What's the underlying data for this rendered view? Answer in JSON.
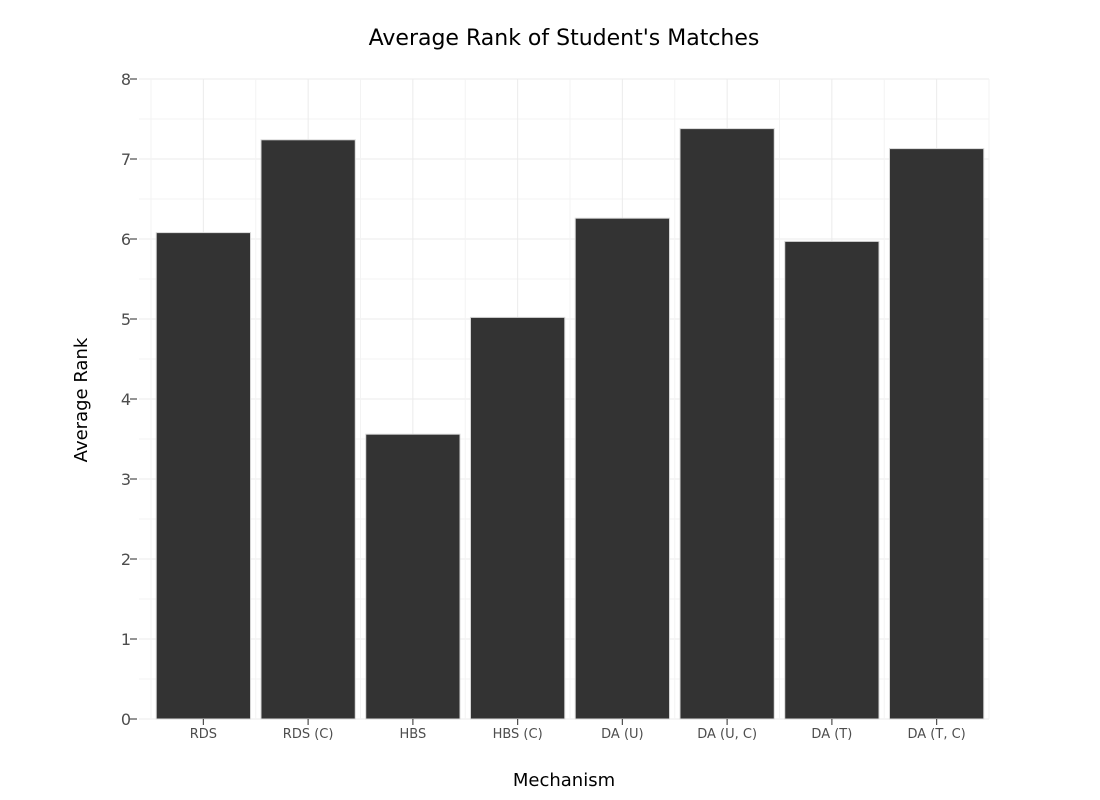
{
  "chart_data": {
    "type": "bar",
    "title": "Average Rank of Student's Matches",
    "xlabel": "Mechanism",
    "ylabel": "Average Rank",
    "categories": [
      "RDS",
      "RDS (C)",
      "HBS",
      "HBS (C)",
      "DA (U)",
      "DA (U, C)",
      "DA (T)",
      "DA (T, C)"
    ],
    "values": [
      6.08,
      7.24,
      3.56,
      5.02,
      6.26,
      7.38,
      5.97,
      7.13
    ],
    "ylim": [
      0,
      8
    ],
    "yticks": [
      "0",
      "1",
      "2",
      "3",
      "4",
      "5",
      "6",
      "7",
      "8"
    ],
    "grid": true,
    "bar_color": "#333333"
  }
}
